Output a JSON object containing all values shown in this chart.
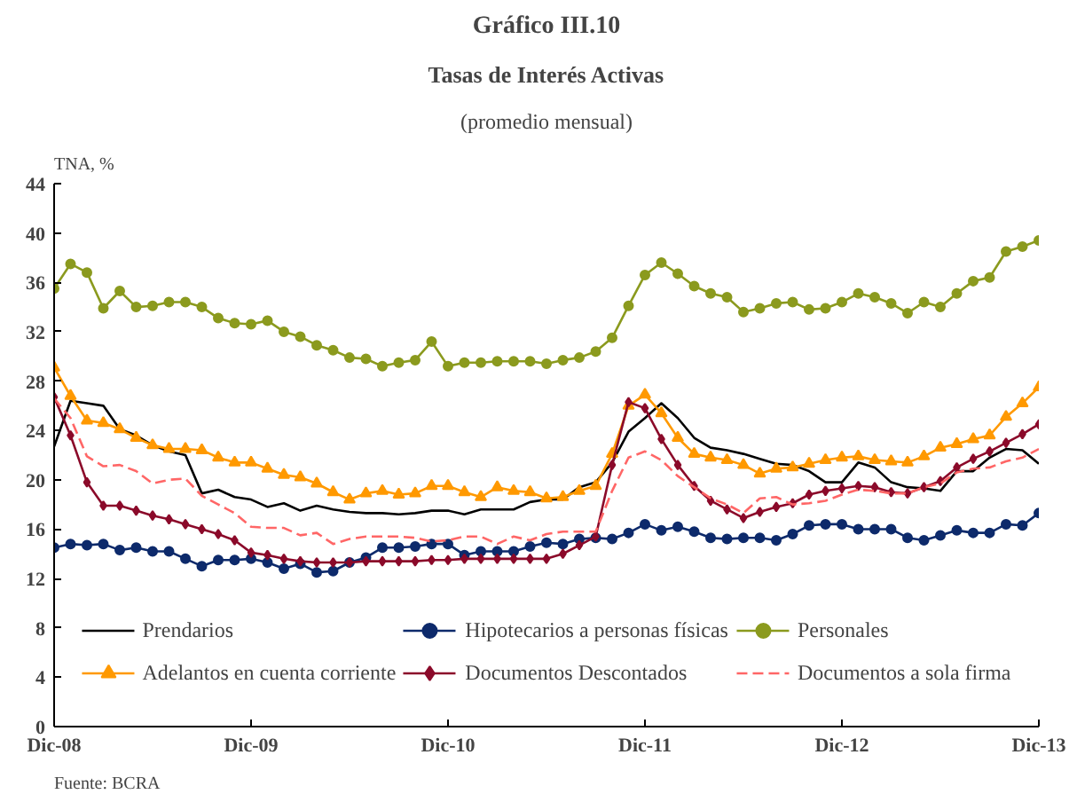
{
  "chart_data": {
    "type": "line",
    "title": "Tasas de Interés Activas",
    "subtitle": "(promedio mensual)",
    "ylabel": "TNA, %",
    "annotations": [
      "Gráfico III.10",
      "Fuente: BCRA"
    ],
    "x": [
      "2008-12",
      "2009-01",
      "2009-02",
      "2009-03",
      "2009-04",
      "2009-05",
      "2009-06",
      "2009-07",
      "2009-08",
      "2009-09",
      "2009-10",
      "2009-11",
      "2009-12",
      "2010-01",
      "2010-02",
      "2010-03",
      "2010-04",
      "2010-05",
      "2010-06",
      "2010-07",
      "2010-08",
      "2010-09",
      "2010-10",
      "2010-11",
      "2010-12",
      "2011-01",
      "2011-02",
      "2011-03",
      "2011-04",
      "2011-05",
      "2011-06",
      "2011-07",
      "2011-08",
      "2011-09",
      "2011-10",
      "2011-11",
      "2011-12",
      "2012-01",
      "2012-02",
      "2012-03",
      "2012-04",
      "2012-05",
      "2012-06",
      "2012-07",
      "2012-08",
      "2012-09",
      "2012-10",
      "2012-11",
      "2012-12",
      "2013-01",
      "2013-02",
      "2013-03",
      "2013-04",
      "2013-05",
      "2013-06",
      "2013-07",
      "2013-08",
      "2013-09",
      "2013-10",
      "2013-11",
      "2013-12"
    ],
    "xlim": [
      "2008-12",
      "2013-12"
    ],
    "xticks": [
      {
        "value": "2008-12",
        "label": "Dic-08"
      },
      {
        "value": "2009-12",
        "label": "Dic-09"
      },
      {
        "value": "2010-12",
        "label": "Dic-10"
      },
      {
        "value": "2011-12",
        "label": "Dic-11"
      },
      {
        "value": "2012-12",
        "label": "Dic-12"
      },
      {
        "value": "2013-12",
        "label": "Dic-13"
      }
    ],
    "ylim": [
      0,
      44
    ],
    "yticks": [
      0,
      4,
      8,
      12,
      16,
      20,
      24,
      28,
      32,
      36,
      40,
      44
    ],
    "grid": false,
    "legend": "bottom",
    "series": [
      {
        "name": "Prendarios",
        "color": "#000000",
        "marker": "none",
        "line_style": "solid",
        "values": [
          22.7,
          26.4,
          26.2,
          26.0,
          24.1,
          23.6,
          22.8,
          22.3,
          22.0,
          18.9,
          19.2,
          18.6,
          18.4,
          17.8,
          18.1,
          17.5,
          17.9,
          17.6,
          17.4,
          17.3,
          17.3,
          17.2,
          17.3,
          17.5,
          17.5,
          17.2,
          17.6,
          17.6,
          17.6,
          18.2,
          18.4,
          18.4,
          19.4,
          19.8,
          21.4,
          23.9,
          25.0,
          26.2,
          25.0,
          23.4,
          22.6,
          22.4,
          22.1,
          21.7,
          21.3,
          21.2,
          20.7,
          19.8,
          19.8,
          21.4,
          21.0,
          19.8,
          19.4,
          19.3,
          19.1,
          20.7,
          20.7,
          21.8,
          22.5,
          22.4,
          21.3
        ]
      },
      {
        "name": "Hipotecarios a personas físicas",
        "color": "#0d2a6b",
        "marker": "circle",
        "line_style": "solid",
        "values": [
          14.5,
          14.8,
          14.7,
          14.8,
          14.3,
          14.5,
          14.2,
          14.2,
          13.6,
          13.0,
          13.5,
          13.5,
          13.6,
          13.3,
          12.8,
          13.2,
          12.5,
          12.6,
          13.3,
          13.7,
          14.5,
          14.5,
          14.6,
          14.8,
          14.8,
          13.9,
          14.2,
          14.2,
          14.2,
          14.6,
          14.9,
          14.8,
          15.2,
          15.3,
          15.2,
          15.7,
          16.4,
          15.9,
          16.2,
          15.8,
          15.3,
          15.2,
          15.3,
          15.3,
          15.1,
          15.6,
          16.3,
          16.4,
          16.4,
          16.0,
          16.0,
          16.0,
          15.3,
          15.1,
          15.5,
          15.9,
          15.7,
          15.7,
          16.4,
          16.3,
          17.3
        ]
      },
      {
        "name": "Personales",
        "color": "#8b9a1e",
        "marker": "circle",
        "line_style": "solid",
        "values": [
          35.5,
          37.5,
          36.8,
          33.9,
          35.3,
          34.0,
          34.1,
          34.4,
          34.4,
          34.0,
          33.1,
          32.7,
          32.6,
          32.9,
          32.0,
          31.6,
          30.9,
          30.5,
          29.9,
          29.8,
          29.2,
          29.5,
          29.7,
          31.2,
          29.2,
          29.5,
          29.5,
          29.6,
          29.6,
          29.6,
          29.4,
          29.7,
          29.9,
          30.4,
          31.5,
          34.1,
          36.6,
          37.6,
          36.7,
          35.7,
          35.1,
          34.8,
          33.6,
          33.9,
          34.3,
          34.4,
          33.8,
          33.9,
          34.4,
          35.1,
          34.8,
          34.3,
          33.5,
          34.4,
          34.0,
          35.1,
          36.1,
          36.4,
          38.5,
          38.9,
          39.4
        ]
      },
      {
        "name": "Adelantos en cuenta corriente",
        "color": "#ff9900",
        "marker": "triangle",
        "line_style": "solid",
        "values": [
          29.1,
          26.8,
          24.8,
          24.6,
          24.1,
          23.4,
          22.8,
          22.5,
          22.5,
          22.4,
          21.8,
          21.4,
          21.4,
          20.9,
          20.4,
          20.2,
          19.7,
          19.0,
          18.4,
          18.9,
          19.1,
          18.8,
          18.9,
          19.5,
          19.5,
          19.0,
          18.6,
          19.4,
          19.1,
          19.0,
          18.5,
          18.6,
          19.1,
          19.5,
          22.1,
          26.0,
          26.9,
          25.4,
          23.4,
          22.1,
          21.8,
          21.6,
          21.2,
          20.5,
          20.9,
          21.0,
          21.3,
          21.6,
          21.8,
          21.9,
          21.6,
          21.5,
          21.4,
          21.9,
          22.6,
          22.9,
          23.3,
          23.6,
          25.1,
          26.2,
          27.5
        ]
      },
      {
        "name": "Documentos Descontados",
        "color": "#8b0a2a",
        "marker": "diamond",
        "line_style": "solid",
        "values": [
          26.7,
          23.6,
          19.8,
          17.9,
          17.9,
          17.5,
          17.1,
          16.8,
          16.4,
          16.0,
          15.6,
          15.1,
          14.1,
          13.9,
          13.6,
          13.4,
          13.3,
          13.3,
          13.3,
          13.4,
          13.4,
          13.4,
          13.4,
          13.5,
          13.5,
          13.6,
          13.6,
          13.6,
          13.6,
          13.6,
          13.6,
          14.0,
          14.7,
          15.4,
          21.2,
          26.3,
          25.8,
          23.3,
          21.2,
          19.5,
          18.3,
          17.6,
          16.9,
          17.4,
          17.8,
          18.1,
          18.8,
          19.1,
          19.3,
          19.5,
          19.4,
          19.0,
          18.9,
          19.4,
          19.9,
          21.0,
          21.7,
          22.3,
          23.0,
          23.7,
          24.5
        ]
      },
      {
        "name": "Documentos a sola firma",
        "color": "#ff6666",
        "marker": "none",
        "line_style": "dashed",
        "values": [
          26.6,
          25.0,
          21.9,
          21.1,
          21.2,
          20.7,
          19.7,
          20.0,
          20.1,
          18.7,
          18.0,
          17.3,
          16.2,
          16.1,
          16.1,
          15.5,
          15.7,
          14.8,
          15.2,
          15.4,
          15.4,
          15.4,
          15.3,
          15.0,
          15.1,
          15.4,
          15.4,
          14.8,
          15.4,
          15.1,
          15.6,
          15.8,
          15.8,
          15.8,
          19.1,
          21.8,
          22.3,
          21.6,
          20.3,
          19.4,
          18.5,
          18.0,
          17.3,
          18.5,
          18.6,
          18.0,
          18.1,
          18.3,
          18.8,
          19.2,
          19.1,
          18.9,
          18.9,
          19.4,
          19.7,
          20.6,
          20.9,
          21.0,
          21.5,
          21.8,
          22.5
        ]
      }
    ]
  }
}
